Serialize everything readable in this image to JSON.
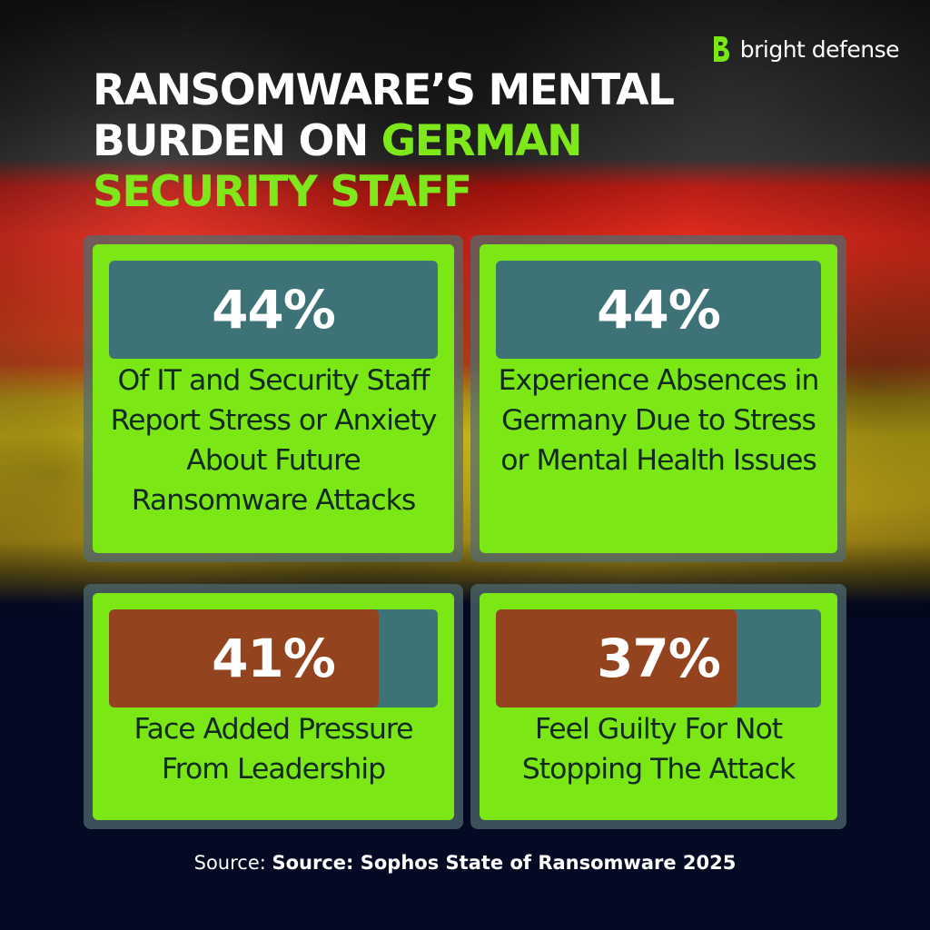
{
  "brand": {
    "name": "bright defense",
    "logo_icon": "bright-defense-b-icon",
    "accent_color": "#7be815"
  },
  "title": {
    "line1": "RANSOMWARE’S MENTAL",
    "line2_white": "BURDEN ON ",
    "line2_accent": "GERMAN",
    "line3_accent": "SECURITY STAFF"
  },
  "stats": [
    {
      "value": "44%",
      "percent": 44,
      "description": "Of IT and Security Staff Report Stress or Anxiety About Future Ransomware Attacks"
    },
    {
      "value": "44%",
      "percent": 44,
      "description": "Experience Absences in Germany Due to Stress or Mental Health Issues"
    },
    {
      "value": "41%",
      "percent": 41,
      "description": "Face Added Pressure From Leadership"
    },
    {
      "value": "37%",
      "percent": 37,
      "description": "Feel Guilty For Not Stopping The Attack"
    }
  ],
  "source": {
    "label": "Source: ",
    "value": "Source: Sophos State of Ransomware 2025"
  },
  "colors": {
    "bar_background": "#3d7377",
    "bar_fill": "#94431f",
    "card_green": "#7be815",
    "navy": "#050a24"
  }
}
